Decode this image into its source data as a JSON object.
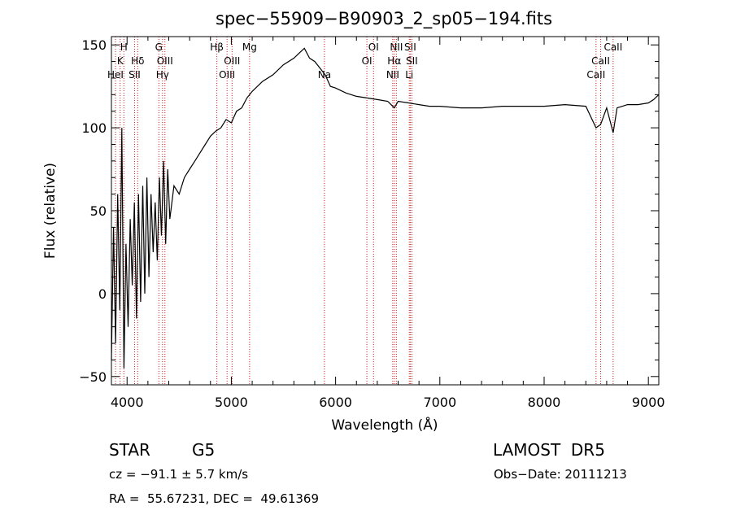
{
  "chart_data": {
    "type": "line",
    "title": "spec−55909−B90903_2_sp05−194.fits",
    "xlabel": "Wavelength (Å)",
    "ylabel": "Flux (relative)",
    "xlim": [
      3850,
      9100
    ],
    "ylim": [
      -55,
      155
    ],
    "xticks": [
      4000,
      5000,
      6000,
      7000,
      8000,
      9000
    ],
    "yticks": [
      -50,
      0,
      50,
      100,
      150
    ],
    "ytick_labels": [
      "−50",
      "0",
      "50",
      "100",
      "150"
    ],
    "grid": false,
    "line_color": "#000000",
    "marker_color": "#cc2222",
    "series": [
      {
        "x": [
          3850,
          3870,
          3890,
          3910,
          3930,
          3950,
          3970,
          3990,
          4010,
          4030,
          4050,
          4070,
          4090,
          4110,
          4130,
          4150,
          4170,
          4190,
          4210,
          4230,
          4250,
          4270,
          4290,
          4310,
          4330,
          4350,
          4370,
          4390,
          4410,
          4450,
          4500,
          4550,
          4600,
          4650,
          4700,
          4750,
          4800,
          4850,
          4900,
          4950,
          5000,
          5050,
          5100,
          5150,
          5200,
          5300,
          5400,
          5500,
          5600,
          5650,
          5700,
          5750,
          5800,
          5850,
          5900,
          5950,
          6000,
          6100,
          6200,
          6300,
          6400,
          6500,
          6563,
          6600,
          6700,
          6800,
          6900,
          7000,
          7200,
          7400,
          7600,
          7800,
          8000,
          8200,
          8400,
          8498,
          8542,
          8600,
          8662,
          8700,
          8800,
          8900,
          9000,
          9050,
          9100
        ],
        "y": [
          -40,
          40,
          -30,
          60,
          -10,
          100,
          -45,
          30,
          -20,
          45,
          5,
          55,
          -15,
          60,
          -5,
          65,
          0,
          70,
          10,
          60,
          25,
          55,
          20,
          70,
          35,
          80,
          30,
          75,
          45,
          65,
          60,
          70,
          75,
          80,
          85,
          90,
          95,
          98,
          100,
          105,
          103,
          110,
          112,
          118,
          122,
          128,
          132,
          138,
          142,
          145,
          148,
          142,
          140,
          136,
          132,
          125,
          124,
          121,
          119,
          118,
          117,
          116,
          112,
          116,
          115,
          114,
          113,
          113,
          112,
          112,
          113,
          113,
          113,
          114,
          113,
          100,
          102,
          112,
          97,
          112,
          114,
          114,
          115,
          117,
          120
        ]
      }
    ],
    "lines": [
      {
        "label": "K",
        "x": 3934,
        "row": 2
      },
      {
        "label": "H",
        "x": 3969,
        "row": 1
      },
      {
        "label": "HeI",
        "x": 3889,
        "row": 3
      },
      {
        "label": "Hδ",
        "x": 4102,
        "row": 2
      },
      {
        "label": "SII",
        "x": 4072,
        "row": 3
      },
      {
        "label": "G",
        "x": 4305,
        "row": 1
      },
      {
        "label": "OIII",
        "x": 4363,
        "row": 2
      },
      {
        "label": "Hγ",
        "x": 4340,
        "row": 3
      },
      {
        "label": "Hβ",
        "x": 4861,
        "row": 1
      },
      {
        "label": "OIII",
        "x": 5007,
        "row": 2
      },
      {
        "label": "OIII",
        "x": 4959,
        "row": 3
      },
      {
        "label": "Mg",
        "x": 5175,
        "row": 1
      },
      {
        "label": "Na",
        "x": 5893,
        "row": 3
      },
      {
        "label": "OI",
        "x": 6364,
        "row": 1
      },
      {
        "label": "OI",
        "x": 6300,
        "row": 2
      },
      {
        "label": "NII",
        "x": 6583,
        "row": 1
      },
      {
        "label": "Hα",
        "x": 6563,
        "row": 2
      },
      {
        "label": "NII",
        "x": 6548,
        "row": 3
      },
      {
        "label": "SII",
        "x": 6716,
        "row": 1
      },
      {
        "label": "SII",
        "x": 6731,
        "row": 2
      },
      {
        "label": "Li",
        "x": 6707,
        "row": 3
      },
      {
        "label": "CaII",
        "x": 8662,
        "row": 1
      },
      {
        "label": "CaII",
        "x": 8542,
        "row": 2
      },
      {
        "label": "CaII",
        "x": 8498,
        "row": 3
      }
    ]
  },
  "info": {
    "star_class": "STAR",
    "subclass": "G5",
    "survey": "LAMOST  DR5",
    "cz": "cz = −91.1 ± 5.7 km/s",
    "obs_date": "Obs−Date: 20111213",
    "radec": "RA =  55.67231, DEC =  49.61369"
  }
}
